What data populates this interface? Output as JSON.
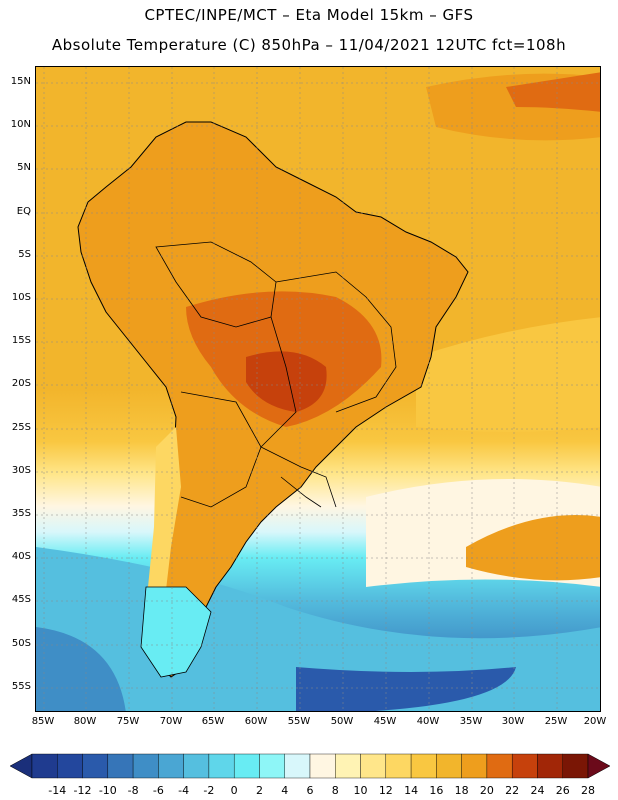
{
  "header": {
    "line1": "CPTEC/INPE/MCT –  Eta Model 15km – GFS",
    "line2": "Absolute Temperature (C) 850hPa – 11/04/2021 12UTC fct=108h"
  },
  "axes": {
    "lat_labels": [
      "15N",
      "10N",
      "5N",
      "EQ",
      "5S",
      "10S",
      "15S",
      "20S",
      "25S",
      "30S",
      "35S",
      "40S",
      "45S",
      "50S",
      "55S"
    ],
    "lon_labels": [
      "85W",
      "80W",
      "75W",
      "70W",
      "65W",
      "60W",
      "55W",
      "50W",
      "45W",
      "40W",
      "35W",
      "30W",
      "25W",
      "20W"
    ]
  },
  "colorbar": {
    "labels": [
      "-14",
      "-12",
      "-10",
      "-8",
      "-6",
      "-4",
      "-2",
      "0",
      "2",
      "4",
      "6",
      "8",
      "10",
      "12",
      "14",
      "16",
      "18",
      "20",
      "22",
      "24",
      "26",
      "28"
    ],
    "colors": [
      "#1f3b8f",
      "#23479d",
      "#2a5aab",
      "#3675b8",
      "#3f8ec6",
      "#4aa6d3",
      "#55bfdf",
      "#5fd6ea",
      "#68ecf3",
      "#8ef6f7",
      "#d8f7fb",
      "#fff6e2",
      "#fff3b4",
      "#ffe68a",
      "#fdd762",
      "#f9c741",
      "#f2b52c",
      "#ee9e1d",
      "#e06b12",
      "#c6410c",
      "#a12607",
      "#7a1605"
    ],
    "low_color": "#1a2f7a",
    "high_color": "#6b0a1a"
  }
}
